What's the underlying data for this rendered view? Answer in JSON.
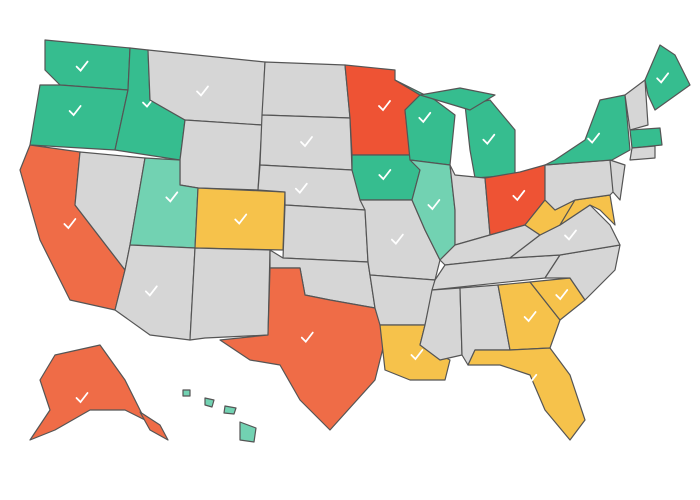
{
  "map": {
    "palette": [
      "#d6d6d6",
      "#36bd8f",
      "#72d2b2",
      "#ef6c47",
      "#ee5334",
      "#f6c24b"
    ],
    "border_color": "#555555",
    "check_color": "#ffffff"
  }
}
